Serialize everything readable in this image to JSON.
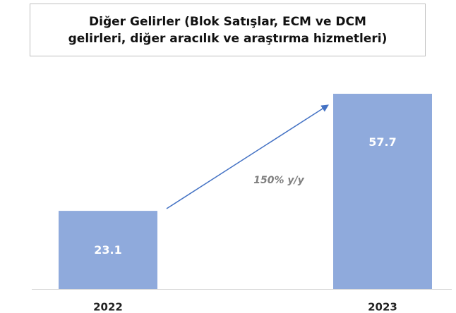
{
  "chart_data": {
    "type": "bar",
    "title": "Diğer Gelirler (Blok Satışlar, ECM ve DCM gelirleri, diğer aracılık ve araştırma hizmetleri)",
    "categories": [
      "2022",
      "2023"
    ],
    "values": [
      23.1,
      57.7
    ],
    "color": "#8faadc",
    "annotation": "150% y/y"
  }
}
